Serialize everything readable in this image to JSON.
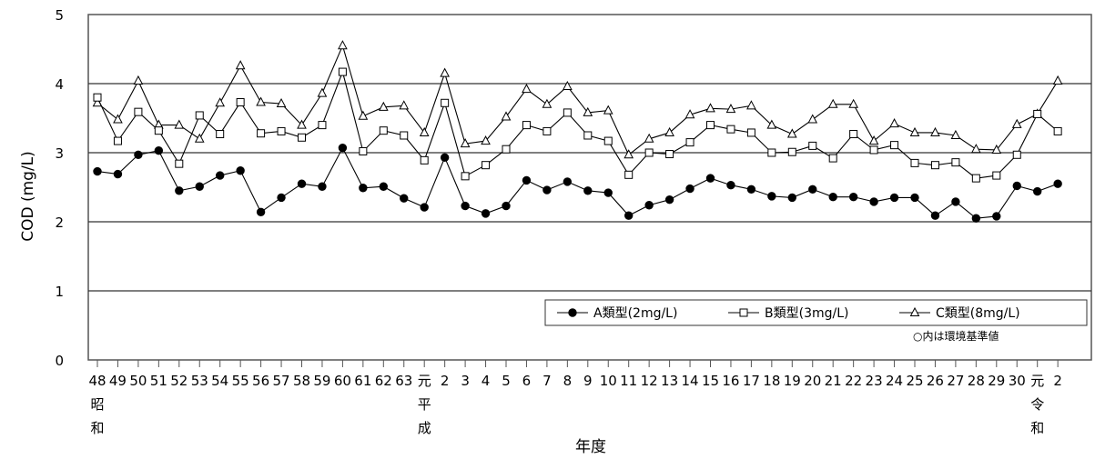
{
  "chart_data": {
    "type": "line",
    "xlabel": "年度",
    "ylabel": "COD (mg/L)",
    "ylim": [
      0,
      5
    ],
    "yticks": [
      "0",
      "1",
      "2",
      "3",
      "4",
      "5"
    ],
    "grid": "horizontal at 1,2,3,4",
    "categories": [
      "48",
      "49",
      "50",
      "51",
      "52",
      "53",
      "54",
      "55",
      "56",
      "57",
      "58",
      "59",
      "60",
      "61",
      "62",
      "63",
      "元",
      "2",
      "3",
      "4",
      "5",
      "6",
      "7",
      "8",
      "9",
      "10",
      "11",
      "12",
      "13",
      "14",
      "15",
      "16",
      "17",
      "18",
      "19",
      "20",
      "21",
      "22",
      "23",
      "24",
      "25",
      "26",
      "27",
      "28",
      "29",
      "30",
      "元",
      "2"
    ],
    "era_labels": [
      {
        "index": 0,
        "chars": [
          "昭",
          "和"
        ]
      },
      {
        "index": 16,
        "chars": [
          "平",
          "成"
        ]
      },
      {
        "index": 46,
        "chars": [
          "令",
          "和"
        ]
      }
    ],
    "series": [
      {
        "name": "A類型(2mg/L)",
        "marker": "filled-circle",
        "values": [
          2.73,
          2.69,
          2.97,
          3.03,
          2.45,
          2.51,
          2.67,
          2.74,
          2.14,
          2.35,
          2.55,
          2.51,
          3.07,
          2.49,
          2.51,
          2.34,
          2.21,
          2.93,
          2.23,
          2.12,
          2.23,
          2.6,
          2.46,
          2.58,
          2.45,
          2.42,
          2.09,
          2.24,
          2.32,
          2.48,
          2.63,
          2.53,
          2.47,
          2.37,
          2.35,
          2.47,
          2.36,
          2.36,
          2.29,
          2.35,
          2.35,
          2.09,
          2.29,
          2.05,
          2.08,
          2.52,
          2.44,
          2.55
        ]
      },
      {
        "name": "B類型(3mg/L)",
        "marker": "open-square",
        "values": [
          3.8,
          3.17,
          3.59,
          3.32,
          2.84,
          3.54,
          3.27,
          3.73,
          3.28,
          3.31,
          3.22,
          3.4,
          4.17,
          3.02,
          3.32,
          3.25,
          2.89,
          3.72,
          2.66,
          2.82,
          3.05,
          3.4,
          3.31,
          3.58,
          3.25,
          3.17,
          2.68,
          3.0,
          2.98,
          3.15,
          3.4,
          3.34,
          3.29,
          3.0,
          3.01,
          3.1,
          2.92,
          3.27,
          3.04,
          3.11,
          2.85,
          2.82,
          2.86,
          2.63,
          2.67,
          2.97,
          3.56,
          3.31
        ]
      },
      {
        "name": "C類型(8mg/L)",
        "marker": "open-triangle",
        "values": [
          3.72,
          3.48,
          4.04,
          3.4,
          3.4,
          3.2,
          3.72,
          4.26,
          3.73,
          3.71,
          3.4,
          3.86,
          4.55,
          3.53,
          3.66,
          3.68,
          3.29,
          4.15,
          3.13,
          3.17,
          3.52,
          3.92,
          3.7,
          3.96,
          3.58,
          3.61,
          2.97,
          3.2,
          3.29,
          3.55,
          3.64,
          3.63,
          3.68,
          3.4,
          3.27,
          3.48,
          3.7,
          3.7,
          3.17,
          3.42,
          3.29,
          3.29,
          3.25,
          3.05,
          3.04,
          3.41,
          3.56,
          4.04
        ]
      }
    ],
    "legend": {
      "position": "bottom-right inside plot"
    },
    "annotation": "○内は環境基準値"
  }
}
